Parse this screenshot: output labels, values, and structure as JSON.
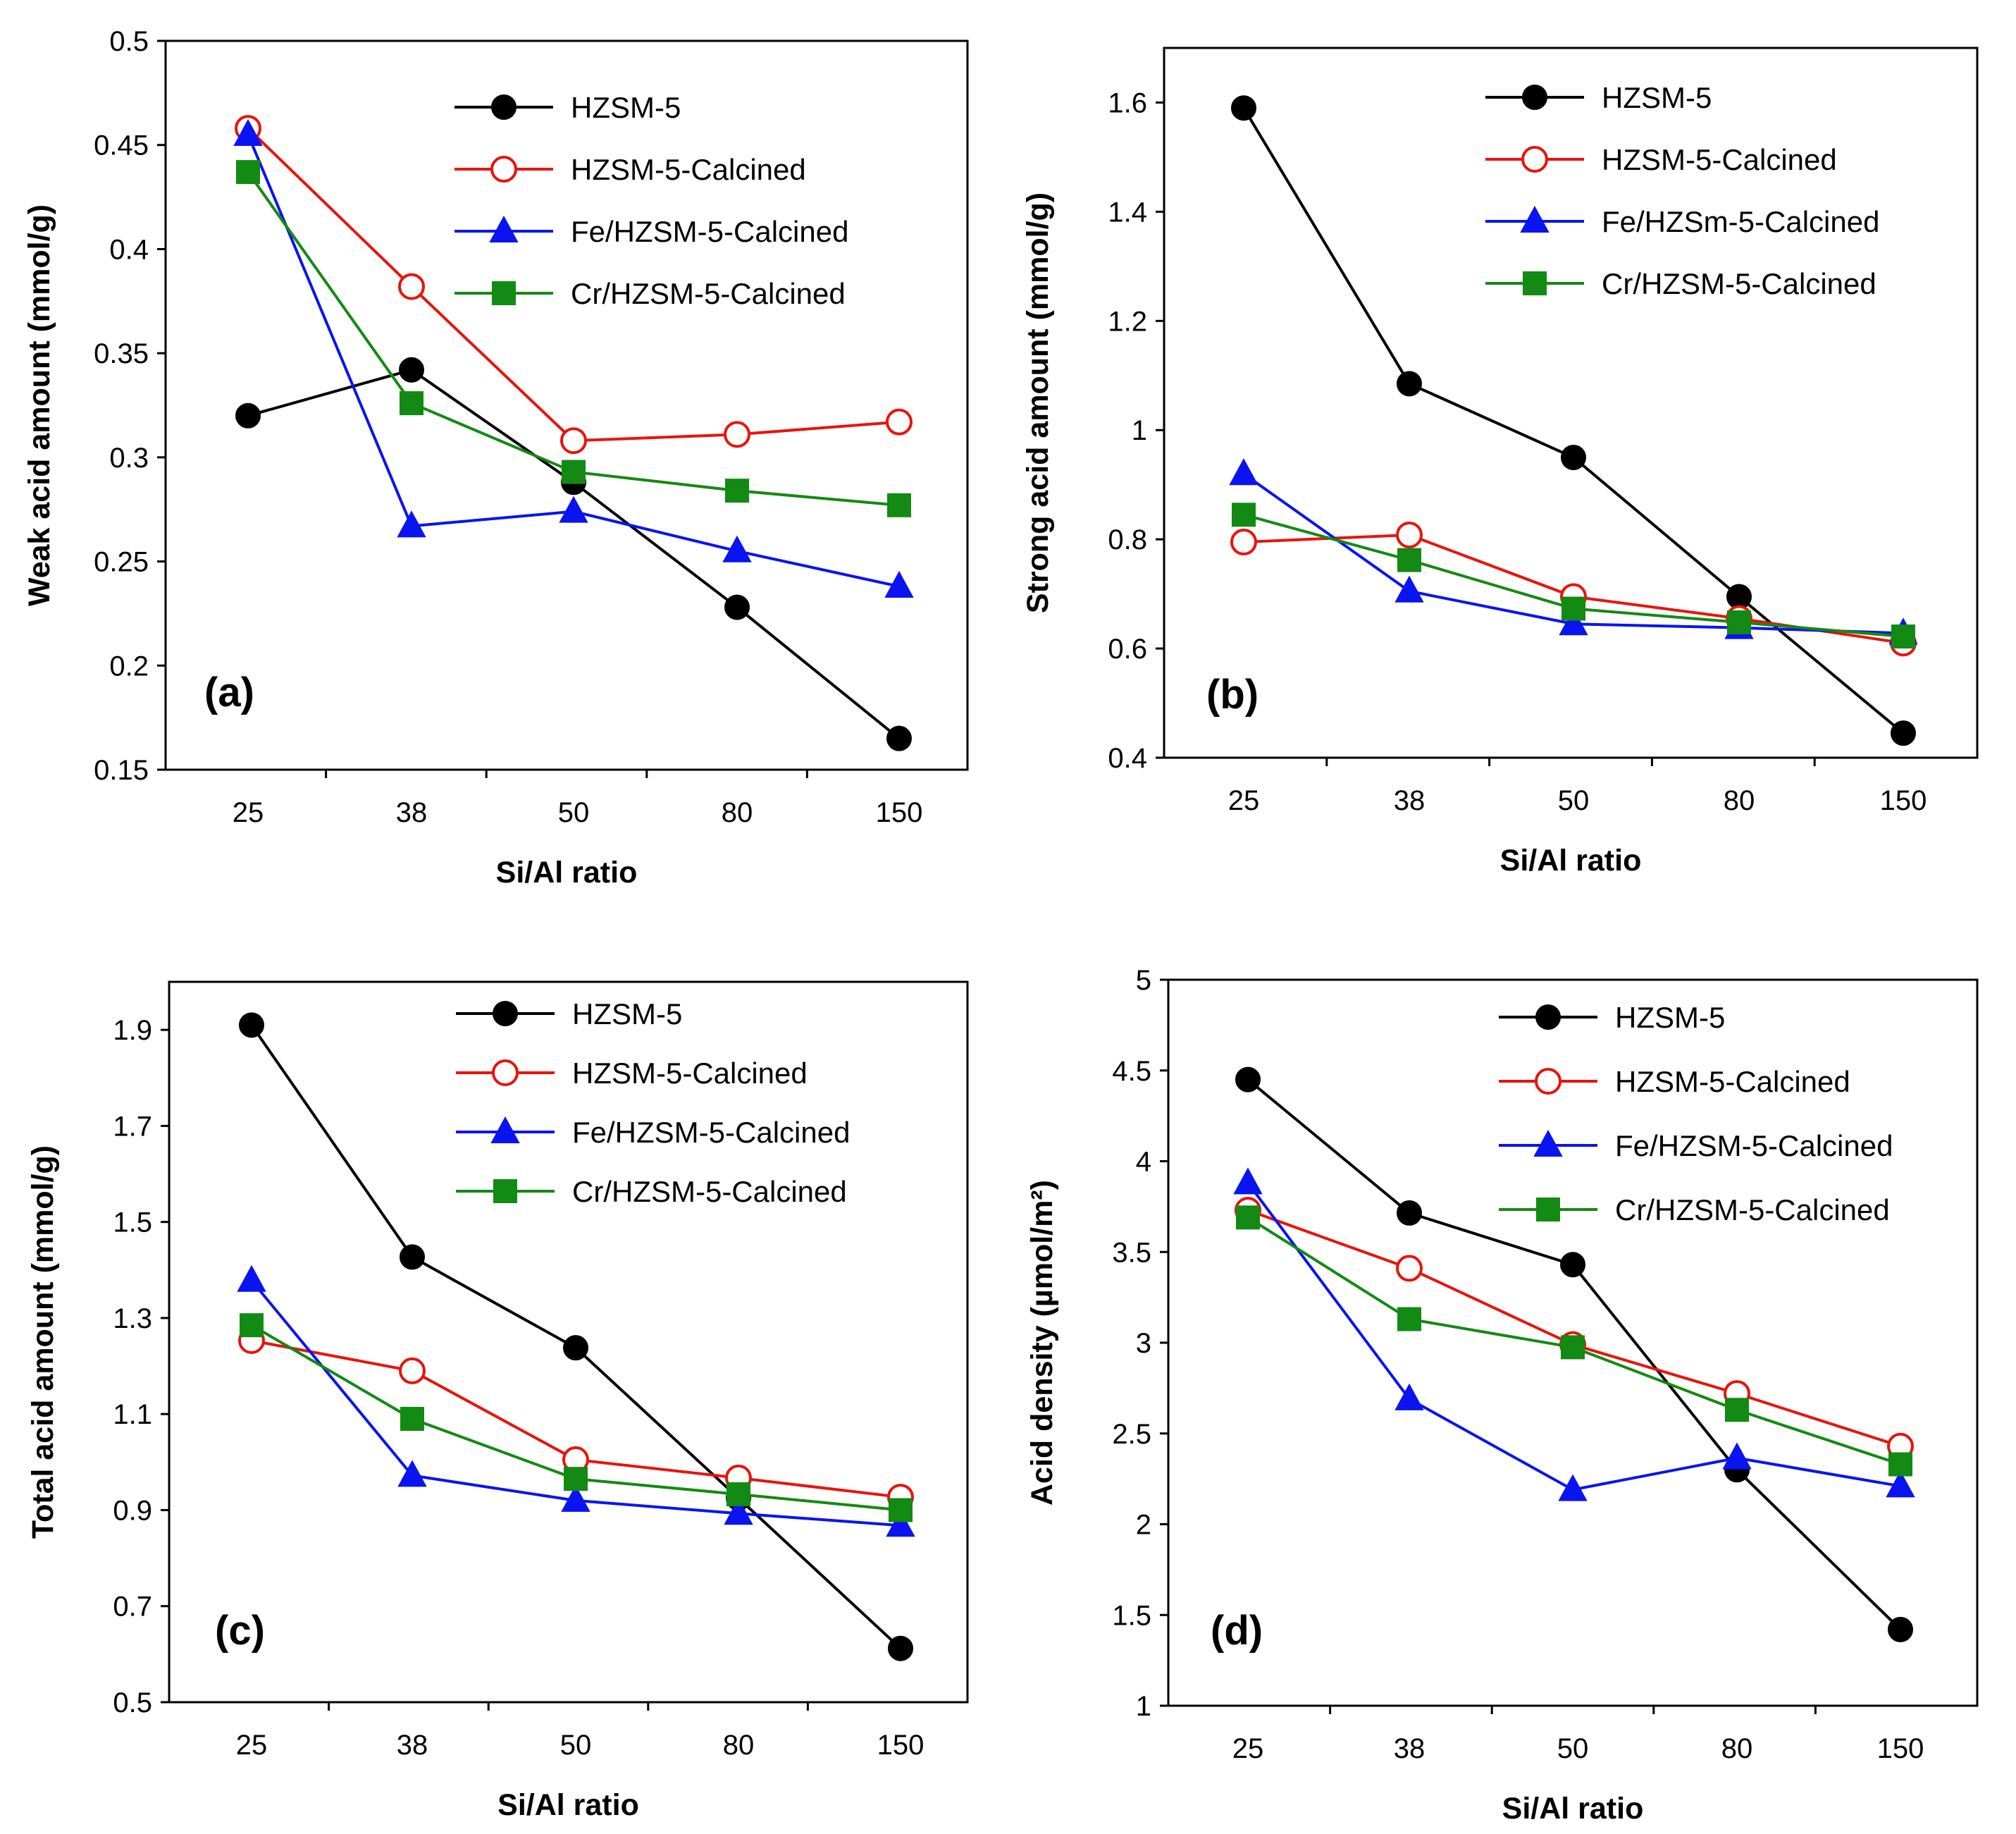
{
  "chart_data": [
    {
      "type": "line",
      "panel": "(a)",
      "xlabel": "Si/Al ratio",
      "ylabel": "Weak acid amount (mmol/g)",
      "categories": [
        "25",
        "38",
        "50",
        "80",
        "150"
      ],
      "ylim": [
        0.15,
        0.5
      ],
      "yticks": [
        0.15,
        0.2,
        0.25,
        0.3,
        0.35,
        0.4,
        0.45,
        0.5
      ],
      "ytick_labels": [
        "0.15",
        "0.2",
        "0.25",
        "0.3",
        "0.35",
        "0.4",
        "0.45",
        "0.5"
      ],
      "legend_position": "top-right",
      "series": [
        {
          "name": "HZSM-5",
          "color": "#000000",
          "marker": "circle-filled",
          "values": [
            0.32,
            0.342,
            0.288,
            0.228,
            0.165
          ]
        },
        {
          "name": "HZSM-5-Calcined",
          "color": "#e8140c",
          "marker": "circle-open",
          "values": [
            0.458,
            0.382,
            0.308,
            0.311,
            0.317
          ]
        },
        {
          "name": "Fe/HZSM-5-Calcined",
          "color": "#0a14f0",
          "marker": "triangle",
          "values": [
            0.455,
            0.267,
            0.274,
            0.255,
            0.238
          ]
        },
        {
          "name": "Cr/HZSM-5-Calcined",
          "color": "#138a13",
          "marker": "square",
          "values": [
            0.437,
            0.326,
            0.293,
            0.284,
            0.277
          ]
        }
      ]
    },
    {
      "type": "line",
      "panel": "(b)",
      "xlabel": "Si/Al ratio",
      "ylabel": "Strong acid amount (mmol/g)",
      "categories": [
        "25",
        "38",
        "50",
        "80",
        "150"
      ],
      "ylim": [
        0.4,
        1.7
      ],
      "yticks": [
        0.4,
        0.6,
        0.8,
        1.0,
        1.2,
        1.4,
        1.6
      ],
      "ytick_labels": [
        "0.4",
        "0.6",
        "0.8",
        "1",
        "1.2",
        "1.4",
        "1.6"
      ],
      "legend_position": "top-right",
      "series": [
        {
          "name": "HZSM-5",
          "color": "#000000",
          "marker": "circle-filled",
          "values": [
            1.59,
            1.085,
            0.95,
            0.695,
            0.445
          ]
        },
        {
          "name": "HZSM-5-Calcined",
          "color": "#e8140c",
          "marker": "circle-open",
          "values": [
            0.795,
            0.808,
            0.695,
            0.655,
            0.61
          ]
        },
        {
          "name": "Fe/HZSm-5-Calcined",
          "color": "#0a14f0",
          "marker": "triangle",
          "values": [
            0.92,
            0.705,
            0.645,
            0.638,
            0.628
          ]
        },
        {
          "name": "Cr/HZSM-5-Calcined",
          "color": "#138a13",
          "marker": "square",
          "values": [
            0.845,
            0.762,
            0.673,
            0.648,
            0.622
          ]
        }
      ]
    },
    {
      "type": "line",
      "panel": "(c)",
      "xlabel": "Si/Al ratio",
      "ylabel": "Total acid amount (mmol/g)",
      "categories": [
        "25",
        "38",
        "50",
        "80",
        "150"
      ],
      "ylim": [
        0.5,
        2.0
      ],
      "yticks": [
        0.5,
        0.7,
        0.9,
        1.1,
        1.3,
        1.5,
        1.7,
        1.9
      ],
      "ytick_labels": [
        "0.5",
        "0.7",
        "0.9",
        "1.1",
        "1.3",
        "1.5",
        "1.7",
        "1.9"
      ],
      "legend_position": "top-right",
      "series": [
        {
          "name": "HZSM-5",
          "color": "#000000",
          "marker": "circle-filled",
          "values": [
            1.91,
            1.427,
            1.238,
            0.925,
            0.612
          ]
        },
        {
          "name": "HZSM-5-Calcined",
          "color": "#e8140c",
          "marker": "circle-open",
          "values": [
            1.253,
            1.19,
            1.005,
            0.967,
            0.927
          ]
        },
        {
          "name": "Fe/HZSM-5-Calcined",
          "color": "#0a14f0",
          "marker": "triangle",
          "values": [
            1.378,
            0.972,
            0.92,
            0.893,
            0.868
          ]
        },
        {
          "name": "Cr/HZSM-5-Calcined",
          "color": "#138a13",
          "marker": "square",
          "values": [
            1.285,
            1.09,
            0.965,
            0.933,
            0.9
          ]
        }
      ]
    },
    {
      "type": "line",
      "panel": "(d)",
      "xlabel": "Si/Al ratio",
      "ylabel": "Acid density (µmol/m²)",
      "categories": [
        "25",
        "38",
        "50",
        "80",
        "150"
      ],
      "ylim": [
        1.0,
        5.0
      ],
      "yticks": [
        1.0,
        1.5,
        2.0,
        2.5,
        3.0,
        3.5,
        4.0,
        4.5,
        5.0
      ],
      "ytick_labels": [
        "1",
        "1.5",
        "2",
        "2.5",
        "3",
        "3.5",
        "4",
        "4.5",
        "5"
      ],
      "legend_position": "top-right",
      "series": [
        {
          "name": "HZSM-5",
          "color": "#000000",
          "marker": "circle-filled",
          "values": [
            4.45,
            3.715,
            3.43,
            2.3,
            1.42
          ]
        },
        {
          "name": "HZSM-5-Calcined",
          "color": "#e8140c",
          "marker": "circle-open",
          "values": [
            3.73,
            3.41,
            2.99,
            2.72,
            2.43
          ]
        },
        {
          "name": "Fe/HZSM-5-Calcined",
          "color": "#0a14f0",
          "marker": "triangle",
          "values": [
            3.88,
            2.69,
            2.19,
            2.365,
            2.21
          ]
        },
        {
          "name": "Cr/HZSM-5-Calcined",
          "color": "#138a13",
          "marker": "square",
          "values": [
            3.69,
            3.13,
            2.975,
            2.63,
            2.33
          ]
        }
      ]
    }
  ]
}
